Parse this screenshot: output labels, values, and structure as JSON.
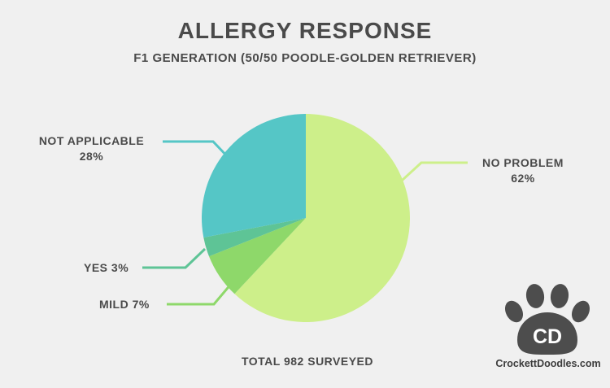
{
  "title": "ALLERGY RESPONSE",
  "subtitle": "F1 GENERATION (50/50 POODLE-GOLDEN RETRIEVER)",
  "footer": "TOTAL 982 SURVEYED",
  "brand": {
    "logo_text": "CD",
    "site": "CrockettDoodles.com",
    "logo_icon": "paw-icon",
    "logo_color": "#4d4d4d"
  },
  "chart_data": {
    "type": "pie",
    "title": "ALLERGY RESPONSE",
    "subtitle": "F1 GENERATION (50/50 POODLE-GOLDEN RETRIEVER)",
    "note": "TOTAL 982 SURVEYED",
    "start": "12 o'clock",
    "direction": "clockwise",
    "slices": [
      {
        "label": "NO PROBLEM",
        "value": 62,
        "value_label": "62%",
        "color": "#cdef8a"
      },
      {
        "label": "MILD",
        "value": 7,
        "value_label": "7%",
        "color": "#8ed86a"
      },
      {
        "label": "YES",
        "value": 3,
        "value_label": "3%",
        "color": "#5ec496"
      },
      {
        "label": "NOT APPLICABLE",
        "value": 28,
        "value_label": "28%",
        "color": "#55c6c6"
      }
    ]
  }
}
